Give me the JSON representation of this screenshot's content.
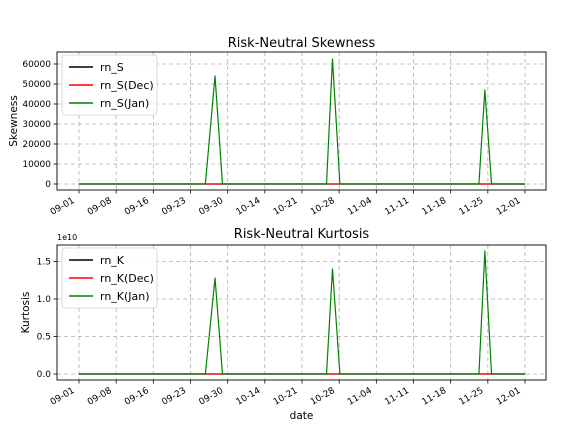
{
  "chart_data": [
    {
      "type": "line",
      "title": "Risk-Neutral Skewness",
      "xlabel": "",
      "ylabel": "Skewness",
      "x_ticks": [
        "09-01",
        "09-08",
        "09-16",
        "09-23",
        "09-30",
        "10-14",
        "10-21",
        "10-28",
        "11-04",
        "11-11",
        "11-18",
        "11-25",
        "12-01"
      ],
      "y_ticks": [
        "0",
        "10000",
        "20000",
        "30000",
        "40000",
        "50000",
        "60000"
      ],
      "ylim": [
        -3000,
        66000
      ],
      "grid": true,
      "legend_position": "upper-left",
      "x_count": 61,
      "series": [
        {
          "name": "rn_S",
          "color": "#000000",
          "values": [
            [
              0,
              0
            ],
            [
              60,
              0
            ]
          ]
        },
        {
          "name": "rn_S(Dec)",
          "color": "#ff0000",
          "values": [
            [
              0,
              0
            ],
            [
              60,
              0
            ]
          ]
        },
        {
          "name": "rn_S(Jan)",
          "color": "#008000",
          "values": [
            [
              0,
              0
            ],
            [
              17,
              0
            ],
            [
              18.3,
              54000
            ],
            [
              19.3,
              0
            ],
            [
              33.3,
              0
            ],
            [
              34.1,
              62500
            ],
            [
              35.1,
              0
            ],
            [
              53.8,
              0
            ],
            [
              54.6,
              47000
            ],
            [
              55.5,
              0
            ],
            [
              60,
              0
            ]
          ]
        }
      ]
    },
    {
      "type": "line",
      "title": "Risk-Neutral Kurtosis",
      "xlabel": "date",
      "ylabel": "Kurtosis",
      "y_exponent": "1e10",
      "x_ticks": [
        "09-01",
        "09-08",
        "09-16",
        "09-23",
        "09-30",
        "10-14",
        "10-21",
        "10-28",
        "11-04",
        "11-11",
        "11-18",
        "11-25",
        "12-01"
      ],
      "y_ticks": [
        "0.0",
        "0.5",
        "1.0",
        "1.5"
      ],
      "ylim": [
        -0.08,
        1.72
      ],
      "grid": true,
      "legend_position": "upper-left",
      "x_count": 61,
      "series": [
        {
          "name": "rn_K",
          "color": "#000000",
          "values": [
            [
              0,
              0
            ],
            [
              60,
              0
            ]
          ]
        },
        {
          "name": "rn_K(Dec)",
          "color": "#ff0000",
          "values": [
            [
              0,
              0
            ],
            [
              60,
              0
            ]
          ]
        },
        {
          "name": "rn_K(Jan)",
          "color": "#008000",
          "values": [
            [
              0,
              0
            ],
            [
              17,
              0
            ],
            [
              18.3,
              1.28
            ],
            [
              19.3,
              0
            ],
            [
              33.3,
              0
            ],
            [
              34.1,
              1.4
            ],
            [
              35.1,
              0
            ],
            [
              53.8,
              0
            ],
            [
              54.6,
              1.64
            ],
            [
              55.5,
              0
            ],
            [
              60,
              0
            ]
          ]
        }
      ]
    }
  ]
}
